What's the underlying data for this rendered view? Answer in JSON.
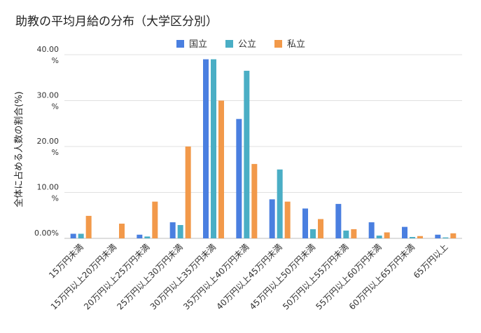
{
  "chart_data": {
    "type": "bar",
    "title": "助教の平均月給の分布（大学区分別）",
    "ylabel": "全体に占める人数の割合(%)",
    "xlabel": "",
    "ylim": [
      0,
      40
    ],
    "y_ticks": [
      {
        "value": 40,
        "line1": "40.00",
        "line2": "%"
      },
      {
        "value": 30,
        "line1": "30.00",
        "line2": "%"
      },
      {
        "value": 20,
        "line1": "20.00",
        "line2": "%"
      },
      {
        "value": 10,
        "line1": "10.00",
        "line2": "%"
      },
      {
        "value": 0,
        "line1": "0.00%",
        "line2": ""
      }
    ],
    "grid": true,
    "legend_position": "top",
    "categories": [
      "15万円未満",
      "15万円以上20万円未満",
      "20万円以上25万円未満",
      "25万円以上30万円未満",
      "30万円以上35万円未満",
      "35万円以上40万円未満",
      "40万円以上45万円未満",
      "45万円以上50万円未満",
      "50万円以上55万円未満",
      "55万円以上60万円未満",
      "60万円以上65万円未満",
      "65万円以上"
    ],
    "series": [
      {
        "name": "国立",
        "color": "#4a7fe0",
        "values": [
          1.0,
          null,
          0.8,
          3.5,
          39.0,
          26.0,
          8.5,
          6.5,
          7.5,
          3.5,
          2.5,
          0.8
        ]
      },
      {
        "name": "公立",
        "color": "#4aaec5",
        "values": [
          1.0,
          null,
          0.4,
          2.9,
          39.0,
          36.5,
          15.0,
          2.0,
          1.7,
          0.6,
          0.3,
          0.2
        ]
      },
      {
        "name": "私立",
        "color": "#f2994a",
        "values": [
          4.9,
          3.2,
          8.0,
          20.0,
          30.0,
          16.2,
          8.0,
          4.2,
          2.0,
          1.3,
          0.5,
          1.1
        ]
      }
    ]
  }
}
